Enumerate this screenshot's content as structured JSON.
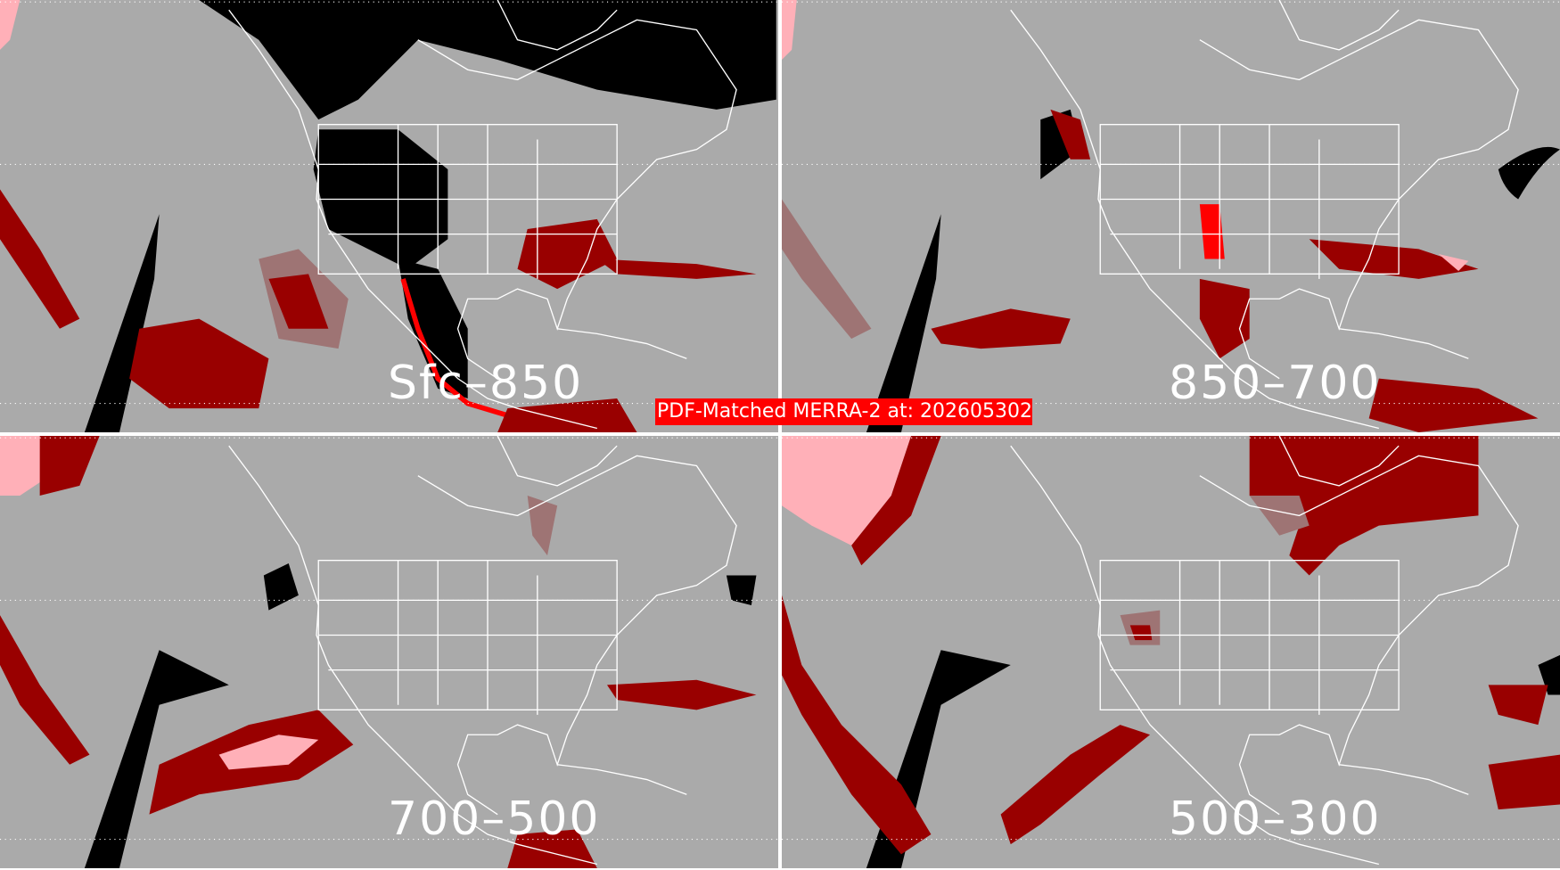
{
  "title": "PDF-Matched MERRA-2 at: 202605302",
  "panels": [
    {
      "label": "Sfc–850"
    },
    {
      "label": "850–700"
    },
    {
      "label": "700–500"
    },
    {
      "label": "500–300"
    }
  ],
  "colors": {
    "background": "#aaaaaa",
    "dark_red": "#990000",
    "red": "#ff0000",
    "pink": "#ffb0b8",
    "rose_brown": "#9e7474",
    "black": "#000000",
    "coastline": "#ffffff"
  }
}
